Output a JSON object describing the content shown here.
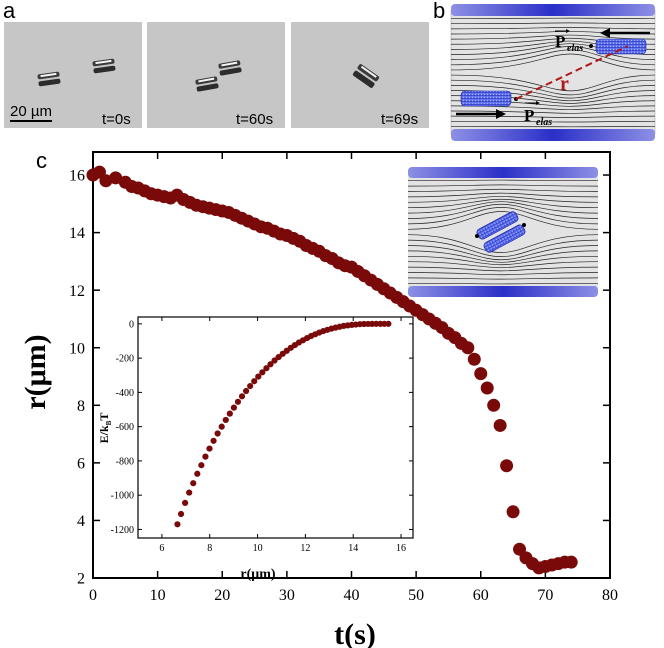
{
  "panels": {
    "a": {
      "letter": "a",
      "scale_bar": "20 µm",
      "frames": [
        {
          "label": "t=0s"
        },
        {
          "label": "t=60s"
        },
        {
          "label": "t=69s"
        }
      ]
    },
    "b": {
      "letter": "b",
      "force_label": "P",
      "force_subscript": "elas",
      "distance_label": "r"
    },
    "c": {
      "letter": "c"
    }
  },
  "colors": {
    "marker": "#7a0a0a",
    "cell_blue": "#3a4ad8",
    "distance_line": "#a31515",
    "micrograph_bg": "#c9c9c9"
  },
  "chart_data": [
    {
      "type": "scatter",
      "title": "",
      "xlabel": "t(s)",
      "ylabel": "r(μm)",
      "xlim": [
        0,
        80
      ],
      "ylim": [
        2,
        16.8
      ],
      "xticks": [
        0,
        10,
        20,
        30,
        40,
        50,
        60,
        70,
        80
      ],
      "yticks": [
        2,
        4,
        6,
        8,
        10,
        12,
        14,
        16
      ],
      "marker": "circle",
      "x": [
        0,
        1,
        2,
        3.5,
        5,
        6,
        7,
        8,
        9,
        10,
        11,
        12,
        13,
        14,
        15,
        16,
        17,
        18,
        19,
        20,
        21,
        22,
        23,
        24,
        25,
        26,
        27,
        28,
        29,
        30,
        31,
        32,
        33,
        34,
        35,
        36,
        37,
        38,
        39,
        40,
        41,
        42,
        43,
        44,
        45,
        46,
        47,
        48,
        49,
        50,
        51,
        52,
        53,
        54,
        55,
        56,
        57,
        58,
        59,
        60,
        61,
        62,
        63,
        64,
        65,
        66,
        67,
        68,
        69,
        70,
        71,
        72,
        73,
        74
      ],
      "y": [
        16.0,
        16.1,
        15.8,
        15.9,
        15.75,
        15.6,
        15.55,
        15.45,
        15.35,
        15.3,
        15.25,
        15.2,
        15.3,
        15.15,
        15.05,
        14.95,
        14.9,
        14.85,
        14.8,
        14.75,
        14.7,
        14.6,
        14.5,
        14.4,
        14.3,
        14.2,
        14.15,
        14.05,
        13.95,
        13.9,
        13.8,
        13.7,
        13.55,
        13.45,
        13.35,
        13.2,
        13.1,
        12.95,
        12.85,
        12.8,
        12.65,
        12.5,
        12.35,
        12.2,
        12.05,
        11.9,
        11.75,
        11.6,
        11.45,
        11.3,
        11.15,
        11.0,
        10.85,
        10.7,
        10.5,
        10.35,
        10.15,
        10.0,
        9.6,
        9.1,
        8.6,
        8.0,
        7.3,
        5.9,
        4.3,
        3.0,
        2.7,
        2.5,
        2.35,
        2.4,
        2.45,
        2.5,
        2.55,
        2.55
      ]
    },
    {
      "type": "scatter",
      "title": "",
      "xlabel": "r(μm)",
      "ylabel": "E/kBT",
      "xlim": [
        5,
        16.5
      ],
      "ylim": [
        -1250,
        40
      ],
      "xticks": [
        6,
        8,
        10,
        12,
        14,
        16
      ],
      "yticks": [
        0,
        -200,
        -400,
        -600,
        -800,
        -1000,
        -1200
      ],
      "marker": "circle",
      "x": [
        6.65,
        6.8,
        6.97,
        7.14,
        7.31,
        7.48,
        7.65,
        7.82,
        7.99,
        8.16,
        8.33,
        8.5,
        8.67,
        8.84,
        9.01,
        9.18,
        9.35,
        9.52,
        9.69,
        9.86,
        10.03,
        10.2,
        10.37,
        10.54,
        10.71,
        10.88,
        11.05,
        11.22,
        11.39,
        11.56,
        11.73,
        11.9,
        12.07,
        12.24,
        12.41,
        12.58,
        12.75,
        12.92,
        13.09,
        13.26,
        13.43,
        13.6,
        13.77,
        13.94,
        14.11,
        14.28,
        14.45,
        14.62,
        14.79,
        14.96,
        15.13,
        15.3,
        15.47
      ],
      "y": [
        -1170,
        -1110,
        -1045,
        -985,
        -930,
        -875,
        -825,
        -775,
        -728,
        -683,
        -640,
        -600,
        -561,
        -524,
        -489,
        -455,
        -423,
        -392,
        -363,
        -335,
        -308,
        -283,
        -259,
        -236,
        -214,
        -194,
        -175,
        -157,
        -140,
        -124,
        -109,
        -96,
        -83,
        -71,
        -61,
        -51,
        -42,
        -35,
        -28,
        -22,
        -17,
        -12,
        -9,
        -6,
        -4,
        -2,
        -1,
        -0.5,
        -0.2,
        -0.1,
        0,
        0,
        0
      ]
    }
  ]
}
